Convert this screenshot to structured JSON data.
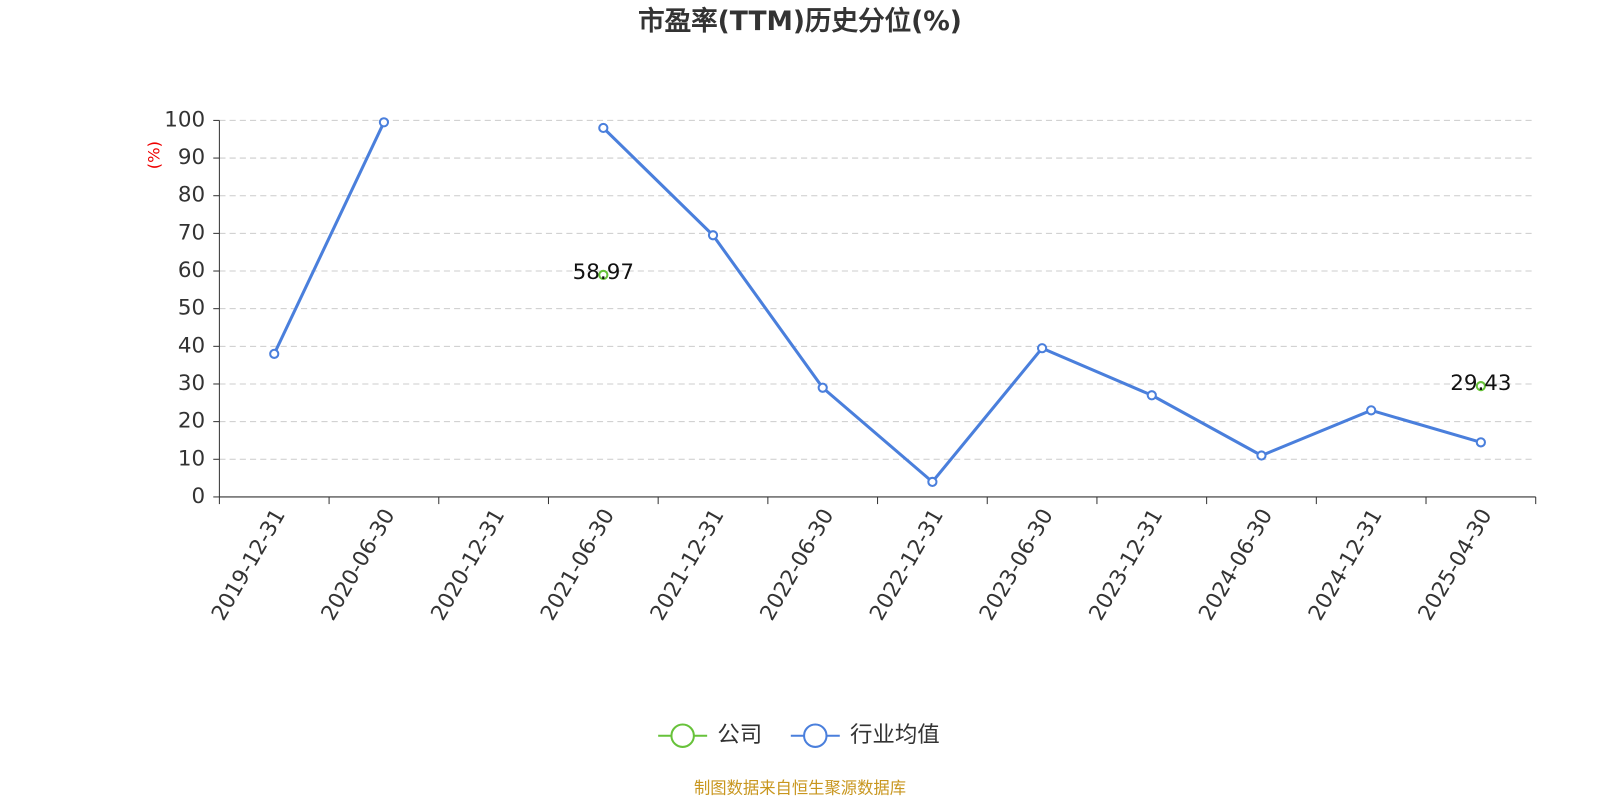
{
  "chart_data": {
    "type": "line",
    "title": "市盈率(TTM)历史分位(%)",
    "y_label": "(%)",
    "source": "制图数据来自恒生聚源数据库",
    "categories": [
      "2019-12-31",
      "2020-06-30",
      "2020-12-31",
      "2021-06-30",
      "2021-12-31",
      "2022-06-30",
      "2022-12-31",
      "2023-06-30",
      "2023-12-31",
      "2024-06-30",
      "2024-12-31",
      "2025-04-30"
    ],
    "series": [
      {
        "name": "公司",
        "color": "#67c23a",
        "values": [
          null,
          null,
          null,
          58.97,
          null,
          null,
          null,
          null,
          null,
          null,
          null,
          29.43
        ],
        "show_labels": true
      },
      {
        "name": "行业均值",
        "color": "#4a7fdc",
        "values": [
          38,
          99.5,
          null,
          98,
          69.5,
          29,
          4,
          39.5,
          27,
          11,
          23,
          14.5
        ]
      }
    ],
    "ylim": [
      0,
      100
    ],
    "yticks": [
      0,
      10,
      20,
      30,
      40,
      50,
      60,
      70,
      80,
      90,
      100
    ],
    "grid": true
  }
}
